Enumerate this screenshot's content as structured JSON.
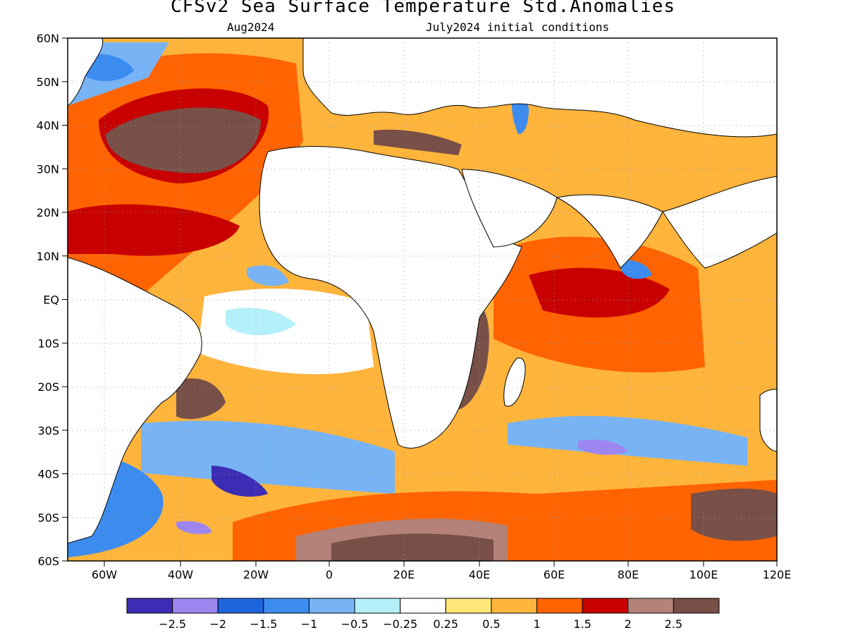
{
  "title": "CFSv2 Sea Surface Temperature Std.Anomalies",
  "subtitle_left": "Aug2024",
  "subtitle_right": "July2024 initial conditions",
  "lat_labels": [
    "60N",
    "50N",
    "40N",
    "30N",
    "20N",
    "10N",
    "EQ",
    "10S",
    "20S",
    "30S",
    "40S",
    "50S",
    "60S"
  ],
  "lon_labels": [
    "60W",
    "40W",
    "20W",
    "0",
    "20E",
    "40E",
    "60E",
    "80E",
    "100E",
    "120E"
  ],
  "colorbar": {
    "colors": [
      "#3c2db4",
      "#9d86f0",
      "#1e64dc",
      "#3c8cf0",
      "#78b4f5",
      "#b4f0fa",
      "#ffffff",
      "#ffe678",
      "#ffb43c",
      "#ff6400",
      "#c80000",
      "#b48278",
      "#785048"
    ],
    "labels": [
      "−2.5",
      "−2",
      "−1.5",
      "−1",
      "−0.5",
      "−0.25",
      "0.25",
      "0.5",
      "1",
      "1.5",
      "2",
      "2.5"
    ]
  },
  "colors": {
    "land": "#ffffff",
    "coast": "#000000",
    "grid": "#999999"
  }
}
